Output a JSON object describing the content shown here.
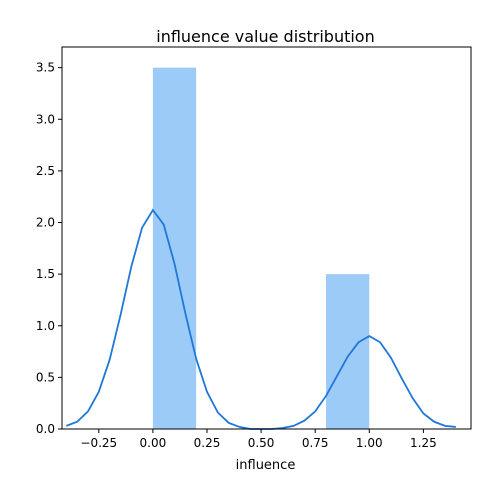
{
  "chart_data": {
    "type": "bar",
    "title": "influence value distribution",
    "xlabel": "influence",
    "ylabel": "",
    "xlim": [
      -0.42,
      1.47
    ],
    "ylim": [
      0,
      3.7
    ],
    "x_ticks": [
      -0.25,
      0.0,
      0.25,
      0.5,
      0.75,
      1.0,
      1.25
    ],
    "x_tick_labels": [
      "−0.25",
      "0.00",
      "0.25",
      "0.50",
      "0.75",
      "1.00",
      "1.25"
    ],
    "y_ticks": [
      0.0,
      0.5,
      1.0,
      1.5,
      2.0,
      2.5,
      3.0,
      3.5
    ],
    "y_tick_labels": [
      "0.0",
      "0.5",
      "1.0",
      "1.5",
      "2.0",
      "2.5",
      "3.0",
      "3.5"
    ],
    "grid": false,
    "histogram": {
      "bins": [
        {
          "x0": 0.0,
          "x1": 0.2,
          "value": 3.5
        },
        {
          "x0": 0.8,
          "x1": 1.0,
          "value": 1.5
        }
      ]
    },
    "kde": {
      "x": [
        -0.4,
        -0.35,
        -0.3,
        -0.25,
        -0.2,
        -0.15,
        -0.1,
        -0.05,
        0.0,
        0.05,
        0.1,
        0.15,
        0.2,
        0.25,
        0.3,
        0.35,
        0.4,
        0.45,
        0.5,
        0.55,
        0.6,
        0.65,
        0.7,
        0.75,
        0.8,
        0.85,
        0.9,
        0.95,
        1.0,
        1.05,
        1.1,
        1.15,
        1.2,
        1.25,
        1.3,
        1.35,
        1.4
      ],
      "y": [
        0.03,
        0.07,
        0.17,
        0.36,
        0.67,
        1.1,
        1.57,
        1.95,
        2.12,
        1.98,
        1.6,
        1.12,
        0.68,
        0.36,
        0.16,
        0.06,
        0.02,
        0.0,
        0.0,
        0.0,
        0.01,
        0.03,
        0.08,
        0.17,
        0.32,
        0.51,
        0.7,
        0.84,
        0.9,
        0.84,
        0.69,
        0.49,
        0.3,
        0.15,
        0.07,
        0.03,
        0.02
      ]
    },
    "colors": {
      "bar": "#9dcbf7",
      "line": "#1f78d8",
      "axis": "#000000"
    }
  }
}
